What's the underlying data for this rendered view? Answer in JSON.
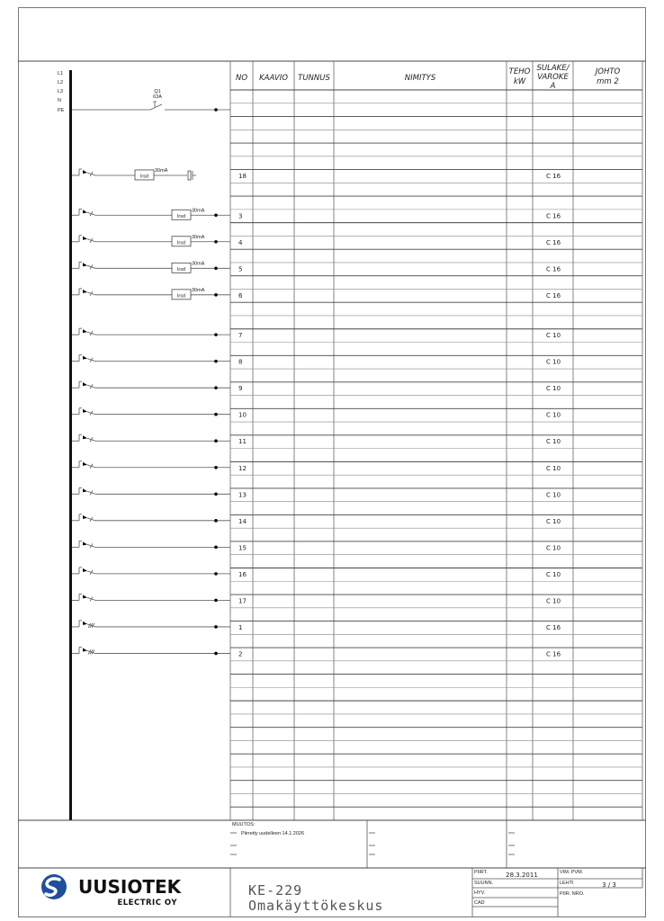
{
  "table": {
    "headers": {
      "no": "NO",
      "kaavio": "KAAVIO",
      "tunnus": "TUNNUS",
      "nimitys": "NIMITYS",
      "teho": [
        "TEHO",
        "kW"
      ],
      "sulake": [
        "SULAKE/",
        "VAROKE",
        "A"
      ],
      "johto": [
        "JOHTO",
        "mm 2"
      ]
    },
    "row_count": 55,
    "rows": [
      {
        "row": 6,
        "no": "18",
        "fuse": "C 16",
        "circuit": "rcd-socket"
      },
      {
        "row": 9,
        "no": "3",
        "fuse": "C 16",
        "circuit": "rcd"
      },
      {
        "row": 11,
        "no": "4",
        "fuse": "C 16",
        "circuit": "rcd"
      },
      {
        "row": 13,
        "no": "5",
        "fuse": "C 16",
        "circuit": "rcd"
      },
      {
        "row": 15,
        "no": "6",
        "fuse": "C 16",
        "circuit": "rcd"
      },
      {
        "row": 18,
        "no": "7",
        "fuse": "C 10",
        "circuit": "breaker"
      },
      {
        "row": 20,
        "no": "8",
        "fuse": "C 10",
        "circuit": "breaker"
      },
      {
        "row": 22,
        "no": "9",
        "fuse": "C 10",
        "circuit": "breaker"
      },
      {
        "row": 24,
        "no": "10",
        "fuse": "C 10",
        "circuit": "breaker"
      },
      {
        "row": 26,
        "no": "11",
        "fuse": "C 10",
        "circuit": "breaker"
      },
      {
        "row": 28,
        "no": "12",
        "fuse": "C 10",
        "circuit": "breaker"
      },
      {
        "row": 30,
        "no": "13",
        "fuse": "C 10",
        "circuit": "breaker"
      },
      {
        "row": 32,
        "no": "14",
        "fuse": "C 10",
        "circuit": "breaker"
      },
      {
        "row": 34,
        "no": "15",
        "fuse": "C 10",
        "circuit": "breaker"
      },
      {
        "row": 36,
        "no": "16",
        "fuse": "C 10",
        "circuit": "breaker"
      },
      {
        "row": 38,
        "no": "17",
        "fuse": "C 10",
        "circuit": "breaker"
      },
      {
        "row": 40,
        "no": "1",
        "fuse": "C 16",
        "circuit": "breaker-3phase"
      },
      {
        "row": 42,
        "no": "2",
        "fuse": "C 16",
        "circuit": "breaker-3phase"
      }
    ]
  },
  "schematic": {
    "bus_labels": [
      "L1",
      "L2",
      "L3",
      "N",
      "PE"
    ],
    "main_switch": {
      "id": "Q1",
      "rating": "63A"
    },
    "rcd_label": "Irsd",
    "rcd_rating": "30mA"
  },
  "changes": {
    "label": "MUUTOS:",
    "entries": [
      "Piirretty uudelleen 14.1.2026"
    ]
  },
  "title_block": {
    "code": "KE-229",
    "name": "Omakäyttökeskus",
    "piirt_label": "PIIRT.",
    "piirt_value": "28.3.2011",
    "suunn_label": "SUUNN.",
    "hyv_label": "HYV.",
    "cad_label": "CAD",
    "vim_pvm_label": "VIM. PVM.",
    "lehti_label": "LEHTI",
    "lehti_value": "3 / 3",
    "piir_nro_label": "PIIR. NRO."
  },
  "logo": {
    "name": "UUSIOTEK",
    "sub": "ELECTRIC OY",
    "color": "#1f4f9a"
  }
}
